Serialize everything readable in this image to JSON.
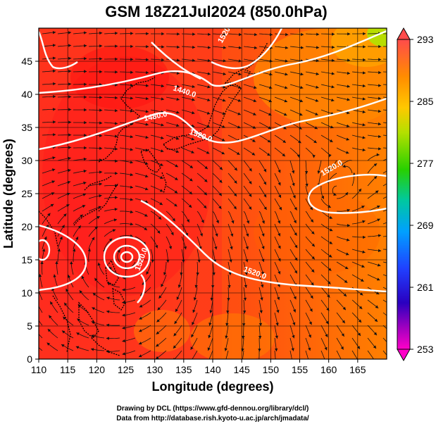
{
  "title": "GSM 18Z21Jul2024 (850.0hPa)",
  "xlabel": "Longitude (degrees)",
  "ylabel": "Latitude  (degrees)",
  "x_ticks": [
    "110",
    "115",
    "120",
    "125",
    "130",
    "135",
    "140",
    "145",
    "150",
    "155",
    "160",
    "165"
  ],
  "y_ticks": [
    "0",
    "5",
    "10",
    "15",
    "20",
    "25",
    "30",
    "35",
    "40",
    "45"
  ],
  "colorbar": {
    "labels": [
      "293",
      "285",
      "277",
      "269",
      "261",
      "253"
    ],
    "min": 253,
    "max": 293
  },
  "contour_labels": [
    "1440.0",
    "1480.0",
    "1520.0",
    "1520.0",
    "1520.0",
    "1520.0",
    "1520.0"
  ],
  "credits": {
    "line1": "Drawing by DCL (https://www.gfd-dennou.org/library/dcl/)",
    "line2": "Data from http://database.rish.kyoto-u.ac.jp/arch/jmadata/"
  },
  "chart_data": {
    "type": "heatmap",
    "title": "GSM 18Z21Jul2024 (850.0hPa)",
    "xlabel": "Longitude (degrees)",
    "ylabel": "Latitude  (degrees)",
    "xlim": [
      110,
      170
    ],
    "ylim": [
      0,
      50
    ],
    "colorbar_range": [
      253,
      293
    ],
    "colors": {
      "warm_high": "#ff2a2a",
      "warm": "#ff6a00",
      "mid_orange": "#ffa000",
      "yellow_green": "#b4e000",
      "green": "#40d000",
      "contour": "#ffffff",
      "streamline": "#111111"
    },
    "overlays": [
      "temperature shading",
      "geopotential height contours",
      "wind streamlines",
      "coastlines"
    ]
  }
}
